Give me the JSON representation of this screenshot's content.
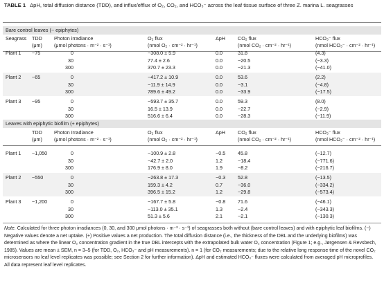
{
  "caption": {
    "label": "TABLE 1",
    "text": "ΔpH, total diffusion distance (TDD), and influx/efflux of O₂, CO₂, and HCO₃⁻ across the leaf tissue surface of three Z. marina L. seagrasses"
  },
  "sections": [
    {
      "title": "Bare control leaves (− epiphytes)",
      "columns": [
        [
          "Seagrass"
        ],
        [
          "TDD",
          "(μm)"
        ],
        [
          "Photon irradiance",
          "(μmol photons · m⁻² · s⁻¹)"
        ],
        [
          "O₂ flux",
          "(nmol O₂ · cm⁻² · hr⁻¹)"
        ],
        [
          "ΔpH"
        ],
        [
          "CO₂ flux",
          "(nmol CO₂ · cm⁻² · hr⁻¹)"
        ],
        [
          "HCO₃⁻ flux",
          "(nmol HCO₃⁻ · cm⁻² · hr⁻¹)"
        ]
      ],
      "groups": [
        {
          "seagrass": "Plant 1",
          "tdd": "~75",
          "rows": [
            [
              "0",
              "−308.0 ± 5.9",
              "0.0",
              "31.8",
              "(4.3)"
            ],
            [
              "30",
              "77.4 ± 2.6",
              "0.0",
              "−20.5",
              "(−3.3)"
            ],
            [
              "300",
              "370.7 ± 23.3",
              "0.0",
              "−21.3",
              "(−41.0)"
            ]
          ]
        },
        {
          "seagrass": "Plant 2",
          "tdd": "~65",
          "rows": [
            [
              "0",
              "−417.2 ± 10.9",
              "0.0",
              "53.6",
              "(2.2)"
            ],
            [
              "30",
              "−11.9 ± 14.9",
              "0.0",
              "−3.1",
              "(−4.8)"
            ],
            [
              "300",
              "789.6 ± 49.2",
              "0.0",
              "−33.9",
              "(−17.5)"
            ]
          ]
        },
        {
          "seagrass": "Plant 3",
          "tdd": "~95",
          "rows": [
            [
              "0",
              "−593.7 ± 35.7",
              "0.0",
              "59.3",
              "(8.0)"
            ],
            [
              "30",
              "16.5 ± 13.9",
              "0.0",
              "−22.7",
              "(−2.9)"
            ],
            [
              "300",
              "516.6 ± 6.4",
              "0.0",
              "−28.3",
              "(−11.9)"
            ]
          ]
        }
      ]
    },
    {
      "title": "Leaves with epiphytic biofilm (+ epiphytes)",
      "columns": [
        [],
        [
          "TDD",
          "(μm)"
        ],
        [
          "Photon Irradiance",
          "(μmol photons · m⁻² · s⁻¹)"
        ],
        [
          "O₂ flux",
          "(nmol O₂ · cm⁻² · hr⁻¹)"
        ],
        [
          "ΔpH"
        ],
        [
          "CO₂ flux",
          "(nmol CO₂ · cm⁻² · hr⁻¹)"
        ],
        [
          "HCO₃⁻ flux",
          "(nmol HCO₃⁻ · cm⁻² · hr⁻¹)"
        ]
      ],
      "groups": [
        {
          "seagrass": "Plant 1",
          "tdd": "~1,050",
          "rows": [
            [
              "0",
              "−100.9 ± 2.8",
              "−0.5",
              "45.8",
              "(−12.7)"
            ],
            [
              "30",
              "−42.7 ± 2.0",
              "1.2",
              "−18.4",
              "(−771.6)"
            ],
            [
              "300",
              "176.9 ± 8.0",
              "1.9",
              "−8.2",
              "(−216.7)"
            ]
          ]
        },
        {
          "seagrass": "Plant 2",
          "tdd": "~550",
          "rows": [
            [
              "0",
              "−263.8 ± 17.3",
              "−0.3",
              "52.8",
              "(−13.5)"
            ],
            [
              "30",
              "159.3 ± 4.2",
              "0.7",
              "−36.0",
              "(−334.2)"
            ],
            [
              "300",
              "396.5 ± 15.2",
              "1.2",
              "−29.8",
              "(−573.4)"
            ]
          ]
        },
        {
          "seagrass": "Plant 3",
          "tdd": "~1,200",
          "rows": [
            [
              "0",
              "−167.7 ± 5.8",
              "−0.8",
              "71.6",
              "(−46.1)"
            ],
            [
              "30",
              "−113.0 ± 35.1",
              "1.3",
              "−2.4",
              "(−343.3)"
            ],
            [
              "300",
              "51.3 ± 5.6",
              "2.1",
              "−2.1",
              "(−130.3)"
            ]
          ]
        }
      ]
    }
  ],
  "note": {
    "label": "Note.",
    "text": "Calculated for three photon irradiances (0, 30, and 300 μmol photons · m⁻² · s⁻¹) of seagrasses both without (bare control leaves) and with epiphytic leaf biofilms. (−) Negative values denote a net uptake. (+) Positive values a net production. The total diffusion distance (i.e., the thickness of the DBL and the underlying biofilms) was determined as where the linear O₂ concentration gradient in the true DBL intercepts with the extrapolated bulk water O₂ concentration (Figure 1; e.g., Jørgensen & Revsbech, 1985). Values are mean ± SEM, n = 3–5 (for TDD, O₂, HCO₃⁻ and pH measurements). n = 1 (for CO₂ measurements; due to the relative long response time of the novel CO₂ microsensors no leaf level replicates was possible; see Section 2 for further information). ΔpH and estimated HCO₃⁻ fluxes were calculated from averaged pH microprofiles. All data represent leaf level replicates."
  }
}
